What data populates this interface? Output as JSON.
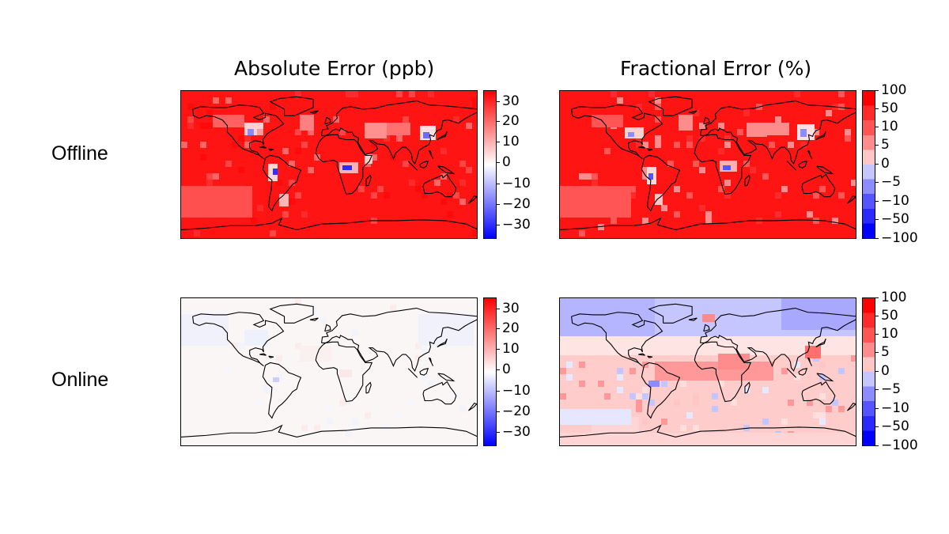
{
  "columns": {
    "absolute_title": "Absolute Error (ppb)",
    "fractional_title": "Fractional Error (%)"
  },
  "rows": {
    "offline_label": "Offline",
    "online_label": "Online"
  },
  "colorbars": {
    "absolute_ticks": [
      "30",
      "20",
      "10",
      "0",
      "−10",
      "−20",
      "−30"
    ],
    "fractional_ticks": [
      "100",
      "50",
      "10",
      "5",
      "0",
      "−5",
      "−10",
      "−50",
      "−100"
    ]
  },
  "colors": {
    "strong_positive": "#ff0000",
    "neutral": "#ffffff",
    "strong_negative": "#0000ff"
  }
}
